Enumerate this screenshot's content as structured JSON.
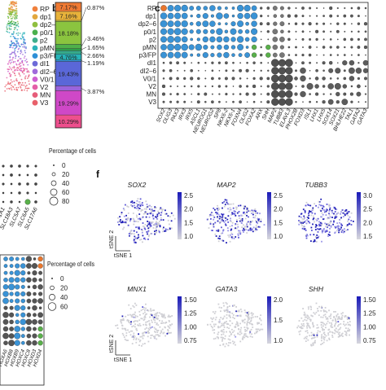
{
  "panels": {
    "a": {
      "legend": [
        {
          "label": "RP",
          "color": "#f0803c"
        },
        {
          "label": "dp1",
          "color": "#e2a73e"
        },
        {
          "label": "dp2–6",
          "color": "#8fbf3f"
        },
        {
          "label": "p0/1",
          "color": "#4ab04c"
        },
        {
          "label": "p2",
          "color": "#3fae8c"
        },
        {
          "label": "pMN",
          "color": "#2cb3b9"
        },
        {
          "label": "p3/FP",
          "color": "#2e8fd6"
        },
        {
          "label": "dI1",
          "color": "#6d6ad8"
        },
        {
          "label": "dI2–6",
          "color": "#a06adb"
        },
        {
          "label": "V0/1",
          "color": "#cf5fd1"
        },
        {
          "label": "V2",
          "color": "#e45fa8"
        },
        {
          "label": "MN",
          "color": "#e65d7a"
        },
        {
          "label": "V3",
          "color": "#e8606a"
        }
      ]
    },
    "b": {
      "letter": "b",
      "segments": [
        {
          "pct": "7.17%",
          "value": 7.17,
          "color": "#f07a33"
        },
        {
          "pct": "7.16%",
          "value": 7.16,
          "color": "#e8b23a"
        },
        {
          "pct": "",
          "value": 0.87,
          "color": "#c8d23b"
        },
        {
          "pct": "18.18%",
          "value": 18.18,
          "color": "#8bc43f"
        },
        {
          "pct": "",
          "value": 3.46,
          "color": "#4fb04a"
        },
        {
          "pct": "",
          "value": 1.65,
          "color": "#2f9e48"
        },
        {
          "pct": "",
          "value": 2.66,
          "color": "#35a98a"
        },
        {
          "pct": "4.76%",
          "value": 4.76,
          "color": "#26b3b8"
        },
        {
          "pct": "",
          "value": 1.19,
          "color": "#2f8fd6"
        },
        {
          "pct": "19.43%",
          "value": 19.43,
          "color": "#5a67d8"
        },
        {
          "pct": "",
          "value": 3.87,
          "color": "#9a64db"
        },
        {
          "pct": "19.29%",
          "value": 19.29,
          "color": "#cf48c7"
        },
        {
          "pct": "10.29%",
          "value": 10.29,
          "color": "#ee4f8d"
        }
      ],
      "side_labels": [
        {
          "text": "0.87%",
          "seg": 2
        },
        {
          "text": "3.46%",
          "seg": 4
        },
        {
          "text": "1.65%",
          "seg": 5
        },
        {
          "text": "2.66%",
          "seg": 6
        },
        {
          "text": "1.19%",
          "seg": 8
        },
        {
          "text": "3.87%",
          "seg": 10
        }
      ]
    },
    "c": {
      "letter": "c",
      "rows": [
        "RP",
        "dp1",
        "dp2–6",
        "p0/1",
        "p2",
        "pMN",
        "p3/FP",
        "dI1",
        "dI2–6",
        "V0/1",
        "V2",
        "MN",
        "V3"
      ],
      "genes": [
        "SOX2",
        "OLIG3",
        "PAX3",
        "IRX3",
        "IRX5",
        "ASCL1",
        "NEUROG1",
        "NEUROG2",
        "SP8",
        "NKX6-2",
        "NKX6-1",
        "FOXN4",
        "OLIG2",
        "FOXA2",
        "ARX",
        "SHH",
        "MAP2",
        "TUBB3",
        "ELAVL3",
        "PHOX2B",
        "FOXD3",
        "ISL1",
        "LHX1",
        "LHX5",
        "SOX14",
        "SOX21",
        "BHLHE22",
        "TAL1",
        "GATA2",
        "GATA3"
      ]
    },
    "e": {
      "legend_title": "Percentage of cells",
      "legend_values": [
        "0",
        "20",
        "40",
        "60",
        "80"
      ],
      "genes": [
        "SLC1A1",
        "SLC18A3",
        "SLC5A7",
        "SLC6A5",
        "SLC17A6"
      ]
    },
    "d": {
      "legend_title": "Percentage of cells",
      "legend_values": [
        "0",
        "20",
        "40",
        "60"
      ],
      "genes": [
        "HOXA6",
        "HOXB8",
        "HOXB9",
        "HOXC4",
        "HOXC8",
        "HOXD3",
        "HOXD4"
      ]
    },
    "f": {
      "letter": "f",
      "axis_y": "tSNE 2",
      "axis_x": "tSNE 1",
      "maps": [
        {
          "gene": "SOX2",
          "ticks": [
            "2.5",
            "2.0",
            "1.5",
            "1.0"
          ],
          "intensity": 0.55
        },
        {
          "gene": "MAP2",
          "ticks": [
            "2.5",
            "2.0",
            "1.5",
            "1.0"
          ],
          "intensity": 0.65
        },
        {
          "gene": "TUBB3",
          "ticks": [
            "3.0",
            "2.5",
            "2.0",
            "1.5"
          ],
          "intensity": 0.8
        },
        {
          "gene": "MNX1",
          "ticks": [
            "1.50",
            "1.25",
            "1.00",
            "0.75"
          ],
          "intensity": 0.06
        },
        {
          "gene": "GATA3",
          "ticks": [
            "2.0",
            "1.5",
            "1.0"
          ],
          "intensity": 0.05
        },
        {
          "gene": "SHH",
          "ticks": [
            "1.50",
            "1.25",
            "1.00",
            "0.75"
          ],
          "intensity": 0.02
        }
      ]
    }
  },
  "colors": {
    "blue": "#3a93d6",
    "grey": "#5c5c5c",
    "green": "#59b04a",
    "orange": "#e8762d"
  }
}
